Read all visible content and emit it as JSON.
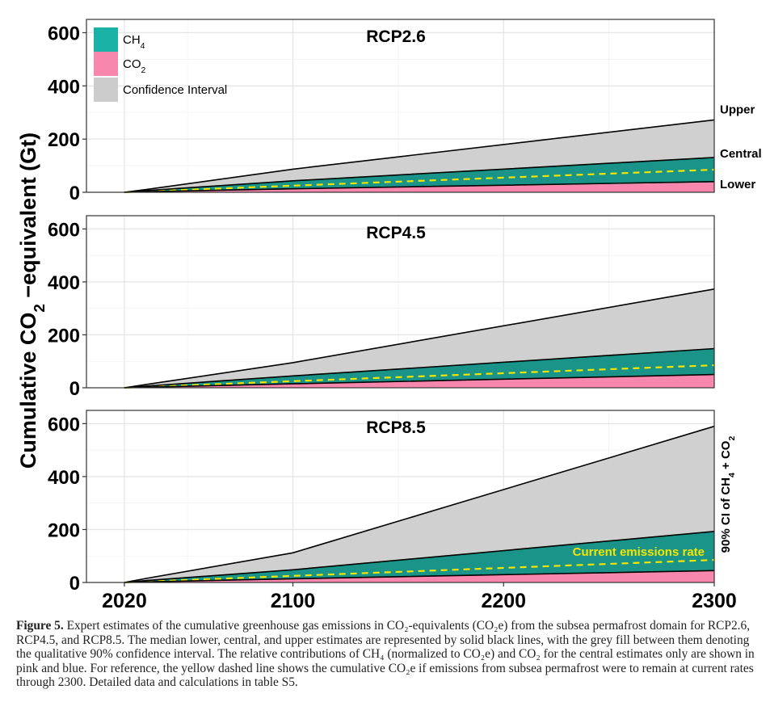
{
  "chart_data": {
    "type": "area",
    "ylabel_parts": [
      "Cumulative CO",
      "2",
      " −equivalent (Gt)"
    ],
    "right_label_parts": [
      "90% CI of CH",
      "4",
      " + CO",
      "2"
    ],
    "xticks": [
      "2020",
      "2100",
      "2200",
      "2300"
    ],
    "yticks": [
      "0",
      "200",
      "400",
      "600"
    ],
    "xlim": [
      2002,
      2300
    ],
    "ylim": [
      0,
      650
    ],
    "legend": {
      "position": "top-left",
      "items": [
        {
          "label": "CH",
          "sub": "4",
          "color": "#1ab2a6"
        },
        {
          "label": "CO",
          "sub": "2",
          "color": "#f887ad"
        },
        {
          "label": "Confidence Interval",
          "sub": "",
          "color": "#cccccc"
        }
      ]
    },
    "colors": {
      "ch4": "#1a9488",
      "co2": "#f887ad",
      "ci": "#d0d0d0",
      "current": "#f2e600",
      "grid": "#e6e6e6"
    },
    "end_labels": {
      "upper": "Upper",
      "central": "Central",
      "lower": "Lower"
    },
    "current_label": "Current emissions rate",
    "panels": [
      {
        "title": "RCP2.6",
        "x": [
          2020,
          2030,
          2100,
          2300
        ],
        "upper": [
          0,
          10,
          87,
          272
        ],
        "central": [
          0,
          6,
          43,
          131
        ],
        "lower": [
          0,
          2,
          13,
          40
        ],
        "co2": [
          0,
          2,
          12,
          37
        ],
        "current_rate": [
          0,
          3,
          25,
          85
        ]
      },
      {
        "title": "RCP4.5",
        "x": [
          2020,
          2030,
          2100,
          2300
        ],
        "upper": [
          0,
          12,
          95,
          373
        ],
        "central": [
          0,
          6,
          45,
          148
        ],
        "lower": [
          0,
          2,
          15,
          50
        ],
        "co2": [
          0,
          2,
          14,
          48
        ],
        "current_rate": [
          0,
          3,
          25,
          85
        ]
      },
      {
        "title": "RCP8.5",
        "x": [
          2020,
          2030,
          2100,
          2300
        ],
        "upper": [
          0,
          15,
          112,
          590
        ],
        "central": [
          0,
          7,
          48,
          193
        ],
        "lower": [
          0,
          2,
          14,
          45
        ],
        "co2": [
          0,
          2,
          13,
          44
        ],
        "current_rate": [
          0,
          3,
          25,
          85
        ]
      }
    ]
  },
  "caption": {
    "label": "Figure 5.",
    "text": " Expert estimates of the cumulative greenhouse gas emissions in CO₂-equivalents (CO₂e) from the subsea permafrost domain for RCP2.6, RCP4.5, and RCP8.5. The median lower, central, and upper estimates are represented by solid black lines, with the grey fill between them denoting the qualitative 90% confidence interval. The relative contributions of CH₄ (normalized to CO₂e) and CO₂ for the central estimates only are shown in pink and blue. For reference, the yellow dashed line shows the cumulative CO₂e if emissions from subsea permafrost were to remain at current rates through 2300. Detailed data and calculations in table S5."
  }
}
